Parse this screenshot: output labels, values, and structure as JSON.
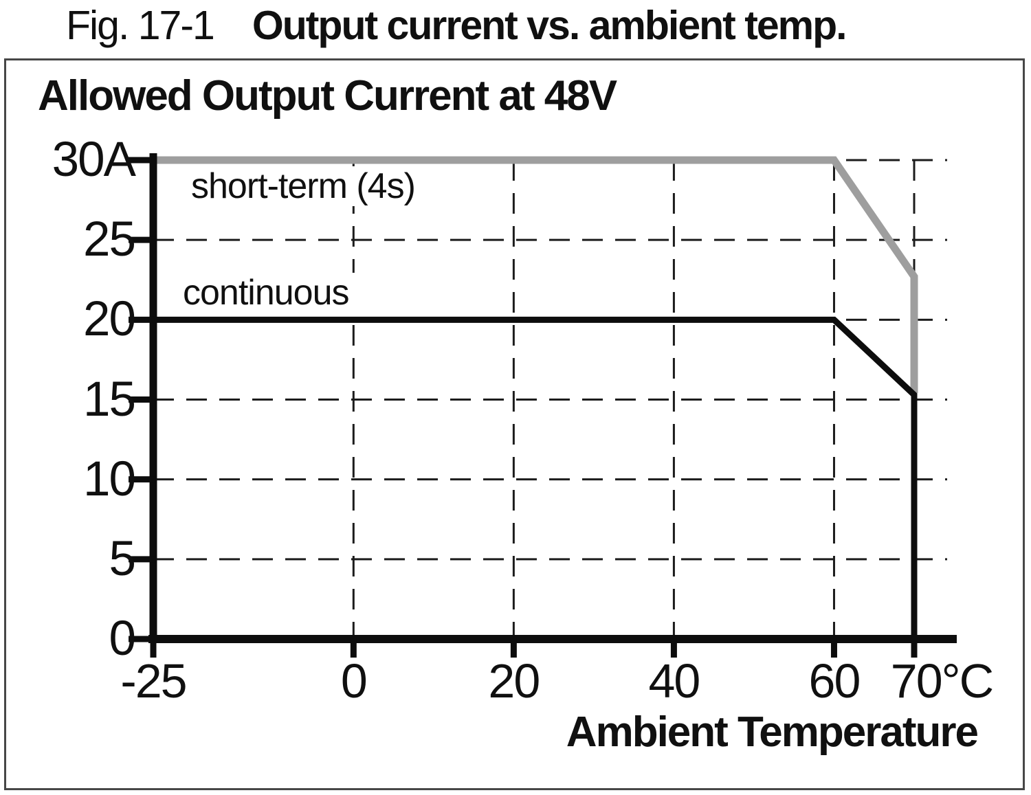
{
  "figure": {
    "label": "Fig. 17-1",
    "title": "Output current vs. ambient temp."
  },
  "chart_data": {
    "type": "line",
    "title": "Allowed Output Current at 48V",
    "xlabel": "Ambient Temperature",
    "ylabel": "Allowed Output Current",
    "x_unit": "°C",
    "y_unit": "A",
    "xlim": [
      -25,
      75
    ],
    "ylim": [
      0,
      30
    ],
    "x_ticks": [
      -25,
      0,
      20,
      40,
      60,
      70
    ],
    "x_tick_labels": [
      "-25",
      "0",
      "20",
      "40",
      "60",
      "70°C"
    ],
    "y_ticks": [
      0,
      5,
      10,
      15,
      20,
      25,
      30
    ],
    "y_tick_labels": [
      "0",
      "5",
      "10",
      "15",
      "20",
      "25",
      "30A"
    ],
    "grid": {
      "style": "dashed",
      "color": "#1c1c1c",
      "x_values": [
        0,
        20,
        40,
        60,
        70
      ],
      "y_values": [
        5,
        10,
        15,
        20,
        25,
        30
      ]
    },
    "axis_color": "#0d0d0d",
    "series": [
      {
        "name": "short-term (4s)",
        "color": "#9e9e9e",
        "stroke_width": 11,
        "points": [
          [
            -25,
            30
          ],
          [
            60,
            30
          ],
          [
            70,
            22.7
          ],
          [
            70,
            15.4
          ]
        ]
      },
      {
        "name": "continuous",
        "color": "#0d0d0d",
        "stroke_width": 9,
        "points": [
          [
            -25,
            20
          ],
          [
            60,
            20
          ],
          [
            70,
            15.3
          ],
          [
            70,
            0
          ]
        ]
      }
    ]
  }
}
